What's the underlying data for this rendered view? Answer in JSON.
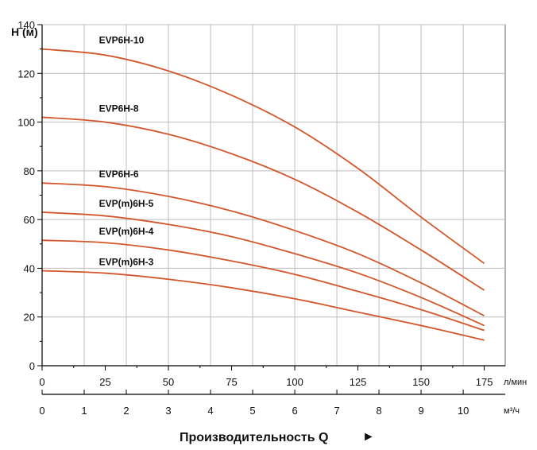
{
  "chart_data": {
    "type": "line",
    "title": "",
    "ylabel": "H (м)",
    "xlabel": "Производительность Q",
    "xlabel_arrow": "►",
    "x_unit_primary": "л/мин",
    "x_unit_secondary": "м³/ч",
    "ylim": [
      0,
      140
    ],
    "yticks": [
      0,
      20,
      40,
      60,
      80,
      100,
      120,
      140
    ],
    "xlim": [
      0,
      183.3
    ],
    "xticks": [
      0,
      25,
      50,
      75,
      100,
      125,
      150,
      175
    ],
    "x2ticks": [
      0,
      1,
      2,
      3,
      4,
      5,
      6,
      7,
      8,
      9,
      10
    ],
    "grid": true,
    "series": [
      {
        "name": "EVP6H-10",
        "x": [
          0,
          25,
          50,
          75,
          100,
          125,
          150,
          175
        ],
        "values": [
          130,
          127.5,
          121,
          111,
          98,
          81,
          61,
          42
        ]
      },
      {
        "name": "EVP6H-8",
        "x": [
          0,
          25,
          50,
          75,
          100,
          125,
          150,
          175
        ],
        "values": [
          102,
          100,
          95,
          87,
          76.5,
          63,
          47.5,
          31
        ]
      },
      {
        "name": "EVP6H-6",
        "x": [
          0,
          25,
          50,
          75,
          100,
          125,
          150,
          175
        ],
        "values": [
          75,
          73.5,
          69.5,
          63.5,
          55.5,
          46,
          34,
          20.5
        ]
      },
      {
        "name": "EVP(m)6H-5",
        "x": [
          0,
          25,
          50,
          75,
          100,
          125,
          150,
          175
        ],
        "values": [
          63,
          61.5,
          58,
          53,
          46,
          38,
          28,
          16.5
        ]
      },
      {
        "name": "EVP(m)6H-4",
        "x": [
          0,
          25,
          50,
          75,
          100,
          125,
          150,
          175
        ],
        "values": [
          51.5,
          50.5,
          47.5,
          43,
          37.5,
          30.5,
          23,
          14.5
        ]
      },
      {
        "name": "EVP(m)6H-3",
        "x": [
          0,
          25,
          50,
          75,
          100,
          125,
          150,
          175
        ],
        "values": [
          39,
          38,
          35.5,
          32,
          27.5,
          22,
          16.5,
          10.5
        ]
      }
    ],
    "line_color": "#d2572c"
  }
}
